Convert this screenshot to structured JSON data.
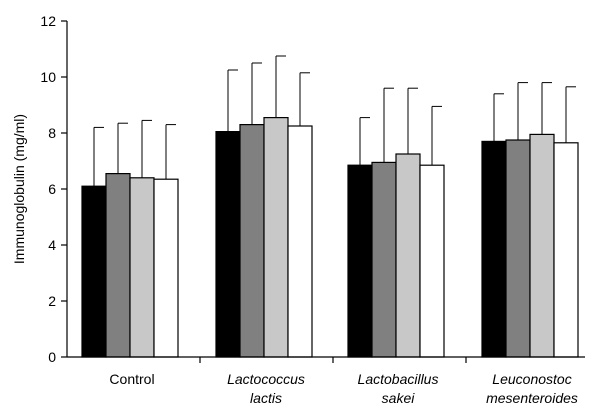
{
  "chart_data": {
    "type": "bar",
    "title": "",
    "xlabel": "",
    "ylabel": "Immunoglobulin (mg/ml)",
    "ylim": [
      0,
      12
    ],
    "yticks": [
      0,
      2,
      4,
      6,
      8,
      10,
      12
    ],
    "grid": false,
    "legend": "none",
    "categories": [
      {
        "lines": [
          "Control"
        ],
        "italic": false
      },
      {
        "lines": [
          "Lactococcus",
          "lactis"
        ],
        "italic": true
      },
      {
        "lines": [
          "Lactobacillus",
          "sakei"
        ],
        "italic": true
      },
      {
        "lines": [
          "Leuconostoc",
          "mesenteroides"
        ],
        "italic": true
      }
    ],
    "series": [
      {
        "color": "#000000",
        "values": [
          6.1,
          8.05,
          6.85,
          7.7
        ],
        "errors": [
          2.1,
          2.2,
          1.7,
          1.7
        ]
      },
      {
        "color": "#808080",
        "values": [
          6.55,
          8.3,
          6.95,
          7.75
        ],
        "errors": [
          1.8,
          2.2,
          2.65,
          2.05
        ]
      },
      {
        "color": "#c8c8c8",
        "values": [
          6.4,
          8.55,
          7.25,
          7.95
        ],
        "errors": [
          2.05,
          2.2,
          2.35,
          1.85
        ]
      },
      {
        "color": "#ffffff",
        "values": [
          6.35,
          8.25,
          6.85,
          7.65
        ],
        "errors": [
          1.95,
          1.9,
          2.1,
          2.0
        ]
      }
    ]
  }
}
